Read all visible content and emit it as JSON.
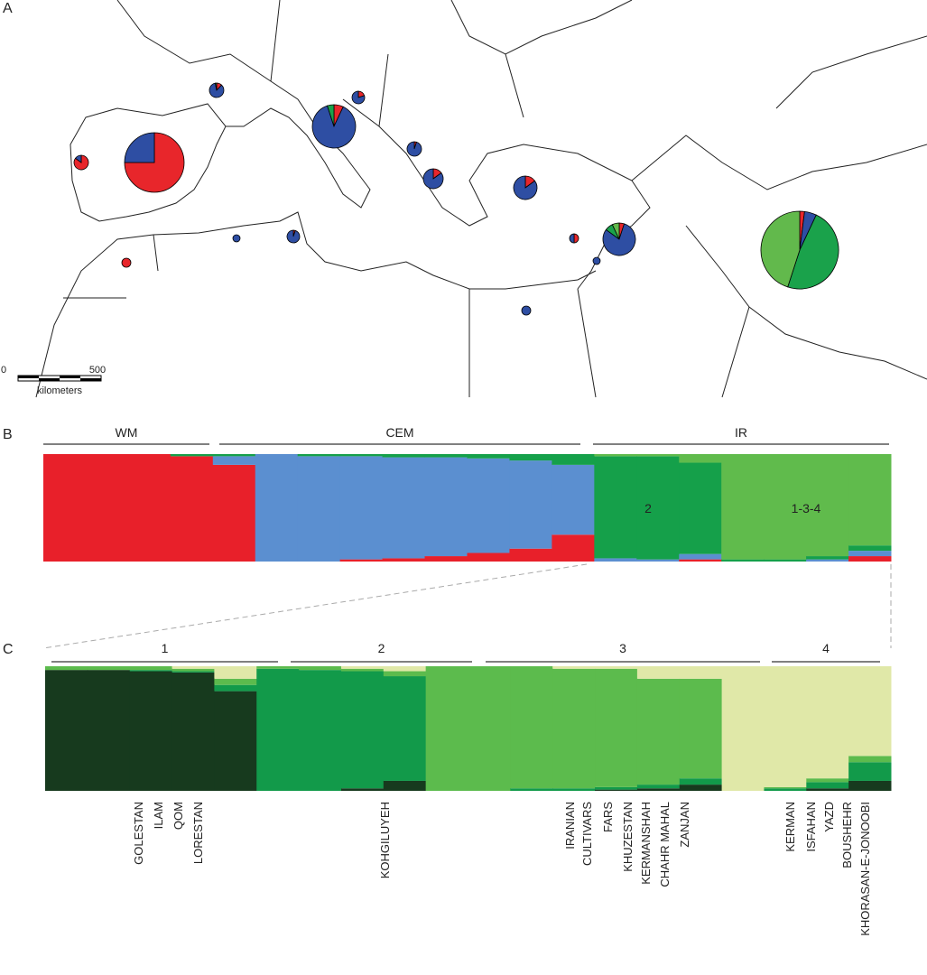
{
  "panel_labels": [
    "A",
    "B",
    "C"
  ],
  "map": {
    "scale_bar": {
      "start": "0",
      "end": "500",
      "unit": "kilometers"
    },
    "pie_colors": [
      "#e8262b",
      "#2e4ea3",
      "#1aa24b",
      "#62b94c"
    ],
    "pies": [
      {
        "values": [
          85,
          15,
          0,
          0
        ]
      },
      {
        "values": [
          75,
          25,
          0,
          0
        ]
      },
      {
        "values": [
          12,
          85,
          3,
          0
        ]
      },
      {
        "values": [
          7,
          88,
          5,
          0
        ]
      },
      {
        "values": [
          20,
          80,
          0,
          0
        ]
      },
      {
        "values": [
          5,
          95,
          0,
          0
        ]
      },
      {
        "values": [
          15,
          85,
          0,
          0
        ]
      },
      {
        "values": [
          15,
          85,
          0,
          0
        ]
      },
      {
        "values": [
          100,
          0,
          0,
          0
        ]
      },
      {
        "values": [
          0,
          100,
          0,
          0
        ]
      },
      {
        "values": [
          5,
          95,
          0,
          0
        ]
      },
      {
        "values": [
          50,
          50,
          0,
          0
        ]
      },
      {
        "values": [
          5,
          80,
          8,
          7
        ]
      },
      {
        "values": [
          0,
          100,
          0,
          0
        ]
      },
      {
        "values": [
          0,
          100,
          0,
          0
        ]
      },
      {
        "values": [
          2,
          5,
          48,
          45
        ]
      }
    ]
  },
  "panel_b": {
    "groups": [
      "WM",
      "CEM",
      "IR"
    ],
    "cluster_labels": [
      "2",
      "1-3-4"
    ],
    "colors": [
      "#e8202a",
      "#5b8fd0",
      "#15a04a",
      "#60bb4c"
    ],
    "bars": [
      [
        100,
        0,
        0,
        0
      ],
      [
        100,
        0,
        0,
        0
      ],
      [
        100,
        0,
        0,
        0
      ],
      [
        98,
        0,
        2,
        0
      ],
      [
        90,
        8,
        2,
        0
      ],
      [
        0,
        100,
        0,
        0
      ],
      [
        0,
        98,
        2,
        0
      ],
      [
        2,
        96,
        2,
        0
      ],
      [
        3,
        94,
        3,
        0
      ],
      [
        5,
        92,
        3,
        0
      ],
      [
        8,
        88,
        4,
        0
      ],
      [
        12,
        82,
        6,
        0
      ],
      [
        25,
        65,
        10,
        0
      ],
      [
        0,
        3,
        95,
        2
      ],
      [
        0,
        2,
        96,
        2
      ],
      [
        2,
        5,
        85,
        8
      ],
      [
        0,
        0,
        2,
        98
      ],
      [
        0,
        0,
        2,
        98
      ],
      [
        0,
        2,
        3,
        95
      ],
      [
        5,
        5,
        5,
        85
      ]
    ]
  },
  "panel_c": {
    "groups": [
      "1",
      "2",
      "3",
      "4"
    ],
    "colors": [
      "#173a1e",
      "#129a4a",
      "#5cbb4d",
      "#e0e8a8"
    ],
    "bars": [
      [
        97,
        0,
        3,
        0
      ],
      [
        97,
        0,
        3,
        0
      ],
      [
        96,
        1,
        3,
        0
      ],
      [
        95,
        1,
        2,
        2
      ],
      [
        80,
        5,
        5,
        10
      ],
      [
        0,
        98,
        2,
        0
      ],
      [
        0,
        97,
        3,
        0
      ],
      [
        2,
        94,
        2,
        2
      ],
      [
        8,
        84,
        4,
        4
      ],
      [
        0,
        0,
        100,
        0
      ],
      [
        0,
        0,
        100,
        0
      ],
      [
        0,
        2,
        98,
        0
      ],
      [
        0,
        2,
        96,
        2
      ],
      [
        1,
        2,
        95,
        2
      ],
      [
        2,
        3,
        85,
        10
      ],
      [
        5,
        5,
        80,
        10
      ],
      [
        0,
        0,
        0,
        100
      ],
      [
        0,
        2,
        1,
        97
      ],
      [
        2,
        5,
        3,
        90
      ],
      [
        8,
        15,
        5,
        72
      ]
    ],
    "populations": [
      [
        "GOLESTAN",
        "ILAM",
        "QOM",
        "LORESTAN"
      ],
      [
        "KOHGILUYEH"
      ],
      [
        "IRANIAN",
        "CULTIVARS",
        "FARS",
        "KHUZESTAN",
        "KERMANSHAH",
        "CHAHR MAHAL",
        "ZANJAN"
      ],
      [
        "KERMAN",
        "ISFAHAN",
        "YAZD",
        "BOUSHEHR",
        "KHORASAN-E-JONOOBI"
      ]
    ]
  }
}
